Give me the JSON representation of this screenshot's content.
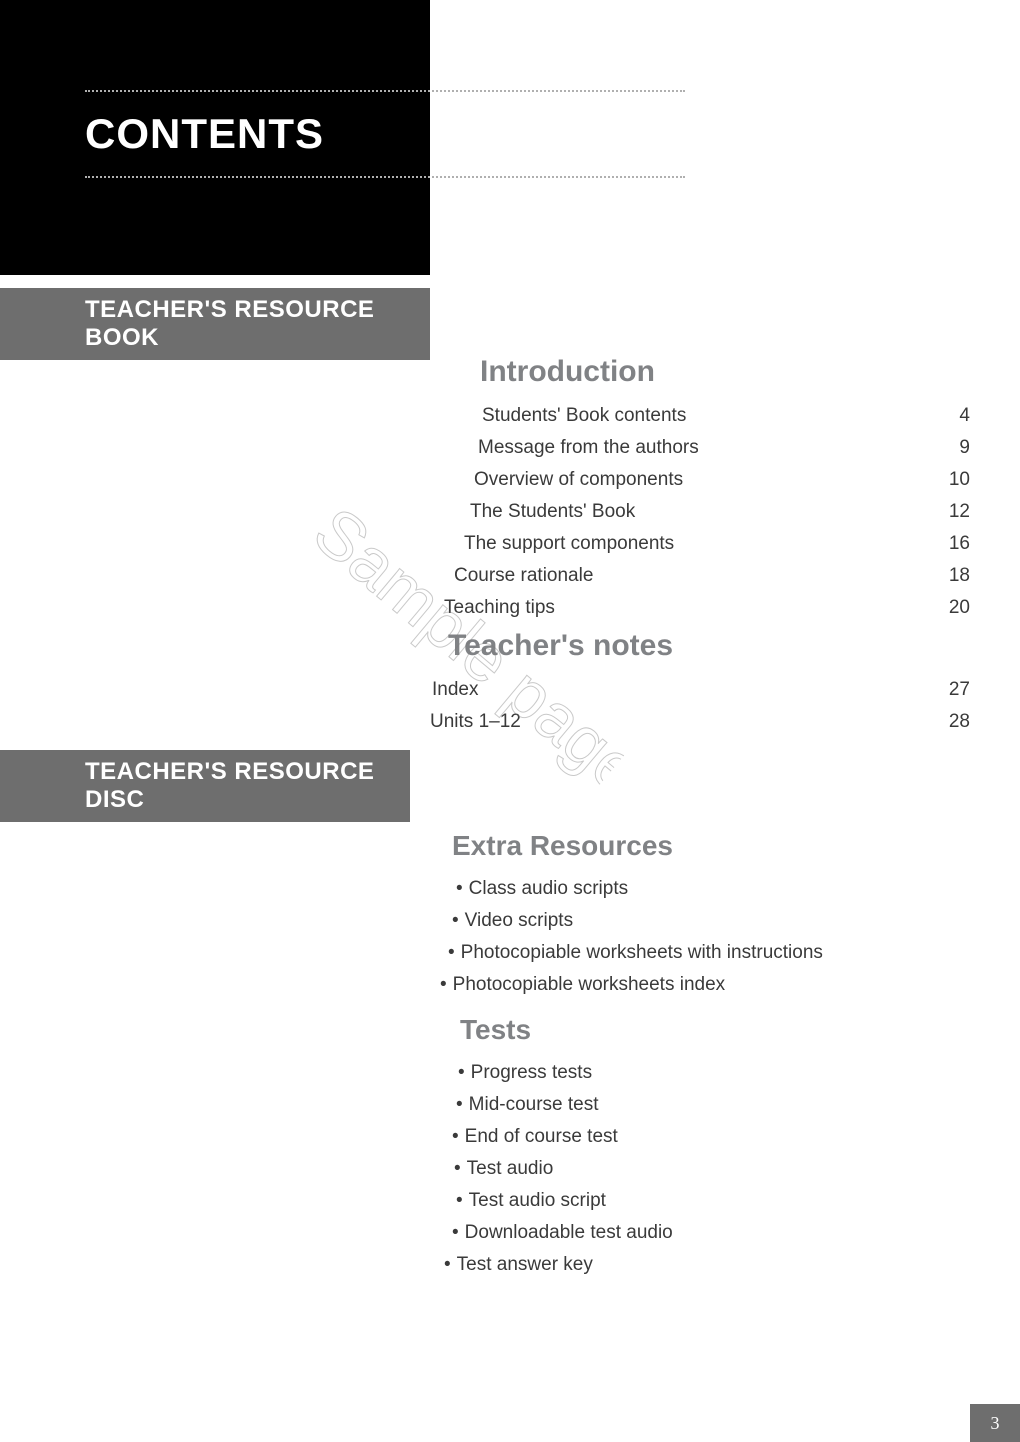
{
  "colors": {
    "black": "#000000",
    "gray_bar": "#6e6e6e",
    "heading_gray": "#808285",
    "body_text": "#3a3a3a",
    "white": "#ffffff",
    "dotted": "#b0b0b0",
    "watermark": "rgba(120,120,120,0.35)"
  },
  "typography": {
    "contents_heading_size": 42,
    "section_bar_size": 24,
    "section_heading_size": 30,
    "body_size": 19
  },
  "contents_title": "CONTENTS",
  "section_bar_1": "TEACHER'S RESOURCE BOOK",
  "section_bar_2": "TEACHER'S RESOURCE DISC",
  "introduction": {
    "heading": "Introduction",
    "items": [
      {
        "label": "Students' Book contents",
        "page": "4"
      },
      {
        "label": "Message from the authors",
        "page": "9"
      },
      {
        "label": "Overview of components",
        "page": "10"
      },
      {
        "label": "The Students' Book",
        "page": "12"
      },
      {
        "label": "The support components",
        "page": "16"
      },
      {
        "label": "Course rationale",
        "page": "18"
      },
      {
        "label": "Teaching tips",
        "page": "20"
      }
    ]
  },
  "teachers_notes": {
    "heading": "Teacher's notes",
    "items": [
      {
        "label": "Index",
        "page": "27"
      },
      {
        "label": "Units 1–12",
        "page": "28"
      }
    ]
  },
  "extra_resources": {
    "heading": "Extra Resources",
    "items": [
      "Class audio scripts",
      "Video scripts",
      "Photocopiable worksheets with instructions",
      "Photocopiable worksheets index"
    ]
  },
  "tests": {
    "heading": "Tests",
    "items": [
      "Progress tests",
      "Mid-course test",
      "End of course test",
      "Test audio",
      "Test audio script",
      "Downloadable test audio",
      "Test answer key"
    ]
  },
  "watermark_text": "Sample pages",
  "page_number": "3"
}
